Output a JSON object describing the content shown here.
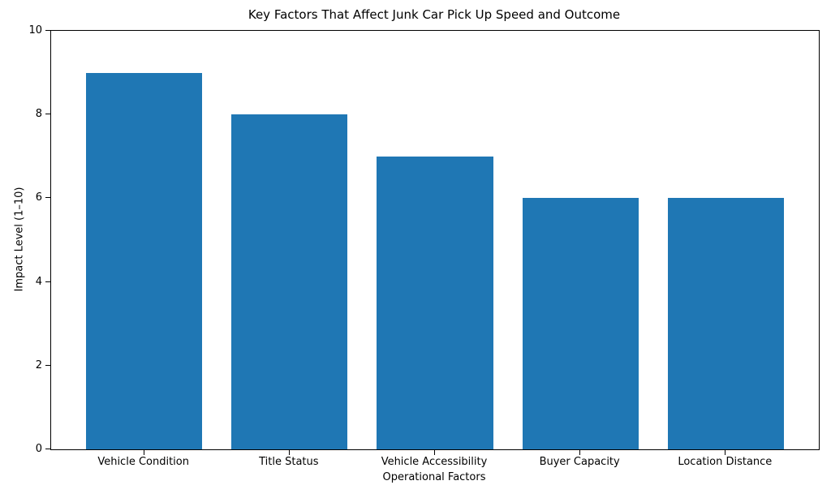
{
  "chart_data": {
    "type": "bar",
    "title": "Key Factors That Affect Junk Car Pick Up Speed and Outcome",
    "xlabel": "Operational Factors",
    "ylabel": "Impact Level (1–10)",
    "categories": [
      "Vehicle Condition",
      "Title Status",
      "Vehicle Accessibility",
      "Buyer Capacity",
      "Location Distance"
    ],
    "values": [
      9,
      8,
      7,
      6,
      6
    ],
    "ylim": [
      0,
      10
    ],
    "yticks": [
      0,
      2,
      4,
      6,
      8,
      10
    ],
    "xlim": [
      -0.64,
      4.64
    ],
    "bar_width": 0.8,
    "bar_color": "#1f77b4",
    "spine_color": "#000000",
    "text_color": "#000000",
    "grid": false,
    "legend": "none"
  }
}
